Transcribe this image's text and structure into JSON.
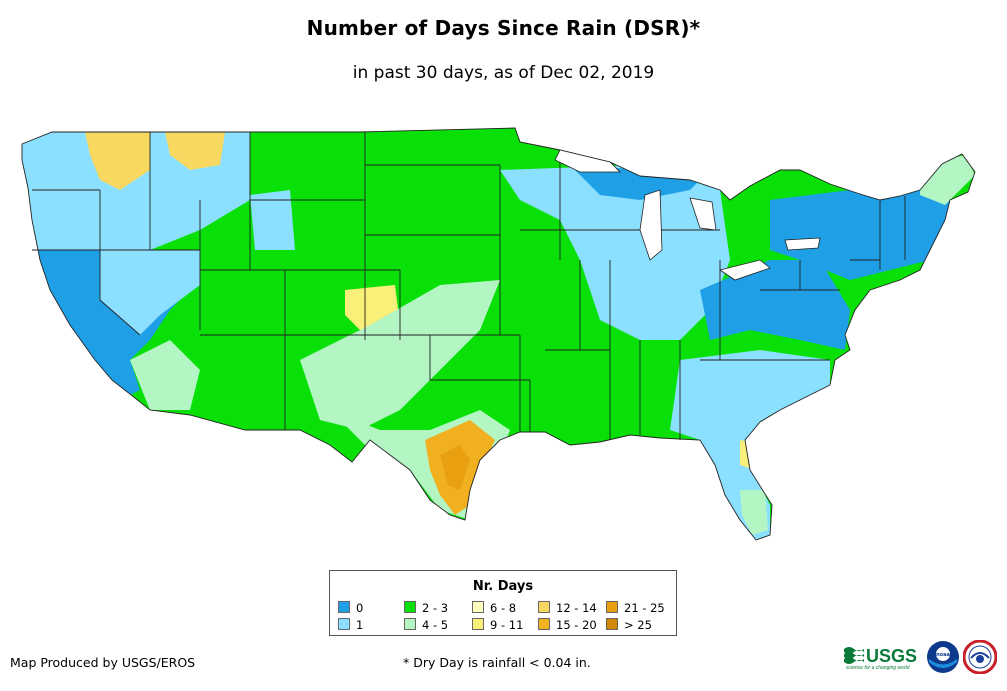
{
  "header": {
    "title": "Number of Days Since Rain (DSR)*",
    "subtitle": "in past 30 days, as of Dec 02, 2019"
  },
  "legend": {
    "title": "Nr. Days",
    "items": [
      {
        "label": "0",
        "color": "#1e9fe6"
      },
      {
        "label": "1",
        "color": "#8ce0ff"
      },
      {
        "label": "2 - 3",
        "color": "#08e008"
      },
      {
        "label": "4 - 5",
        "color": "#b3f5c3"
      },
      {
        "label": "6 - 8",
        "color": "#ffffc0"
      },
      {
        "label": "9 - 11",
        "color": "#f8f078"
      },
      {
        "label": "12 - 14",
        "color": "#f8d860"
      },
      {
        "label": "15 - 20",
        "color": "#f0b020"
      },
      {
        "label": "21 - 25",
        "color": "#e8a010"
      },
      {
        "label": "> 25",
        "color": "#d08800"
      }
    ]
  },
  "footer": {
    "credit": "Map Produced by USGS/EROS",
    "note": "* Dry Day is rainfall < 0.04 in."
  },
  "logos": {
    "usgs_text": "USGS",
    "usgs_tagline": "science for a changing world",
    "noaa_text": "noaa"
  }
}
